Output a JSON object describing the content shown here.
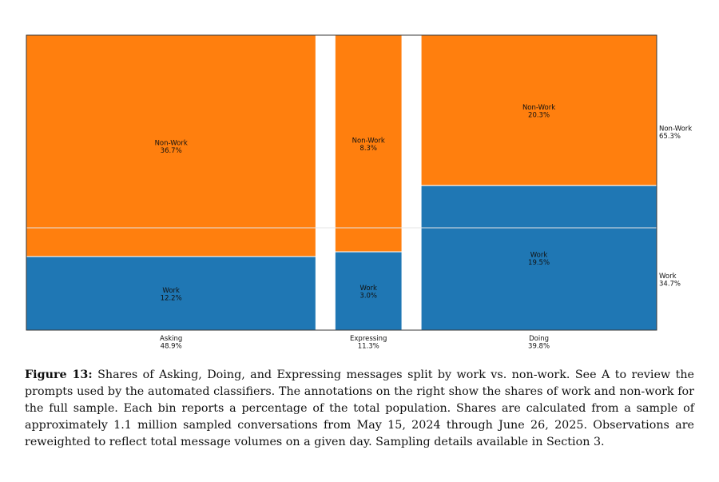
{
  "chart_data": {
    "type": "mosaic",
    "categories": [
      {
        "name": "Asking",
        "share": "48.9%",
        "width_pct": 48.9
      },
      {
        "name": "Expressing",
        "share": "11.3%",
        "width_pct": 11.3
      },
      {
        "name": "Doing",
        "share": "39.8%",
        "width_pct": 39.8
      }
    ],
    "series": [
      {
        "name": "Work",
        "color": "#1f77b4",
        "values": [
          12.2,
          3.0,
          19.5
        ],
        "labels": [
          "12.2%",
          "3.0%",
          "19.5%"
        ]
      },
      {
        "name": "Non-Work",
        "color": "#ff7f0e",
        "values": [
          36.7,
          8.3,
          20.3
        ],
        "labels": [
          "36.7%",
          "8.3%",
          "20.3%"
        ]
      }
    ],
    "totals": [
      {
        "name": "Non-Work",
        "share": "65.3%",
        "value": 65.3
      },
      {
        "name": "Work",
        "share": "34.7%",
        "value": 34.7
      }
    ],
    "stack_order": "Work bottom, Non-Work top"
  },
  "caption": {
    "label": "Figure 13:",
    "text": "Shares of Asking, Doing, and Expressing messages split by work vs. non-work. See A to review the prompts used by the automated classifiers. The annotations on the right show the shares of work and non-work for the full sample. Each bin reports a percentage of the total population. Shares are calculated from a sample of approximately 1.1 million sampled conversations from May 15, 2024 through June 26, 2025. Observations are reweighted to reflect total message volumes on a given day. Sampling details available in Section 3."
  }
}
